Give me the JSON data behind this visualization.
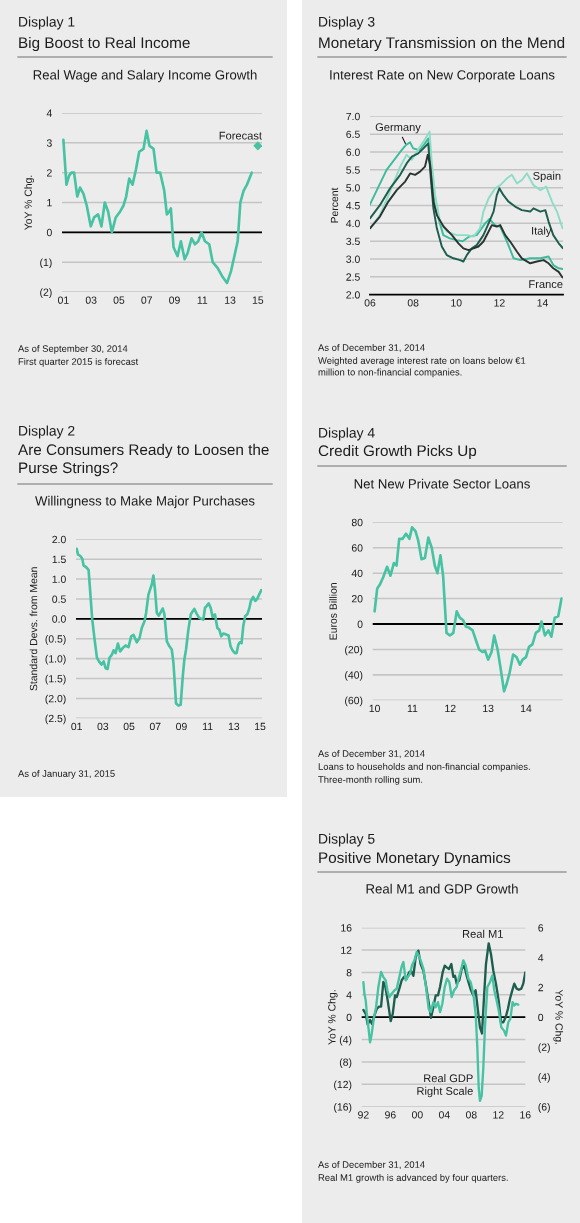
{
  "chart_data": [
    {
      "type": "line",
      "title": "Big Boost to Real Income",
      "subtitle": "Real Wage and Salary Income Growth",
      "ylabel": "YoY % Chg.",
      "annotations": [
        "Display 1",
        "As of September 30, 2014",
        "First quarter 2015 is forecast"
      ],
      "xlim": [
        2000.9,
        2015.3
      ],
      "xticks": [
        {
          "value": 2001,
          "label": "01"
        },
        {
          "value": 2003,
          "label": "03"
        },
        {
          "value": 2005,
          "label": "05"
        },
        {
          "value": 2007,
          "label": "07"
        },
        {
          "value": 2009,
          "label": "09"
        },
        {
          "value": 2011,
          "label": "11"
        },
        {
          "value": 2013,
          "label": "13"
        },
        {
          "value": 2015,
          "label": "15"
        }
      ],
      "ylim": [
        -2,
        4
      ],
      "yticks": [
        {
          "value": -2,
          "label": "(2)"
        },
        {
          "value": -1,
          "label": "(1)"
        },
        0,
        1,
        2,
        3,
        4
      ],
      "grid": "y",
      "ref_lines": [
        {
          "axis": "y",
          "value": 0,
          "color": "#000000"
        }
      ],
      "series": [
        {
          "color": "#47c2a2",
          "x": [
            2001.0,
            2001.22,
            2001.41,
            2001.58,
            2001.77,
            2002.0,
            2002.2,
            2002.44,
            2002.68,
            2002.97,
            2003.21,
            2003.5,
            2003.74,
            2003.98,
            2004.22,
            2004.49,
            2004.77,
            2005.09,
            2005.33,
            2005.52,
            2005.74,
            2005.98,
            2006.22,
            2006.46,
            2006.77,
            2006.99,
            2007.2,
            2007.49,
            2007.71,
            2007.97,
            2008.26,
            2008.45,
            2008.62,
            2008.74,
            2008.93,
            2009.22,
            2009.46,
            2009.73,
            2009.94,
            2010.23,
            2010.47,
            2010.71,
            2010.95,
            2011.19,
            2011.5,
            2011.75,
            2012.11,
            2012.47,
            2012.78,
            2013.07,
            2013.31,
            2013.55,
            2013.74,
            2013.98,
            2014.22,
            2014.56
          ],
          "values": [
            3.1,
            1.6,
            1.9,
            2.0,
            2.0,
            1.2,
            1.5,
            1.3,
            0.9,
            0.2,
            0.5,
            0.6,
            0.2,
            1.0,
            0.7,
            0.0,
            0.5,
            0.7,
            0.9,
            1.2,
            1.8,
            1.6,
            2.1,
            2.7,
            2.8,
            3.4,
            2.9,
            2.8,
            2.0,
            2.0,
            1.4,
            0.6,
            0.7,
            0.8,
            -0.5,
            -0.8,
            -0.3,
            -0.9,
            -0.7,
            -0.2,
            -0.4,
            -0.3,
            0.0,
            -0.3,
            -0.4,
            -1.0,
            -1.2,
            -1.5,
            -1.7,
            -1.3,
            -0.8,
            -0.3,
            1.0,
            1.4,
            1.6,
            2.0
          ]
        },
        {
          "name": "Forecast",
          "type": "scatter",
          "marker": "diamond",
          "color": "#47c2a2",
          "x": [
            2015.0
          ],
          "values": [
            2.9
          ]
        }
      ]
    },
    {
      "type": "line",
      "title": "Monetary Transmission on the Mend",
      "subtitle": "Interest Rate on New Corporate Loans",
      "ylabel": "Percent",
      "annotations": [
        "Display 3",
        "As of December 31, 2014",
        "Weighted average interest rate on loans below €1\nmillion to non-financial companies."
      ],
      "xlim": [
        2006.0,
        2014.95
      ],
      "xticks": [
        {
          "value": 2006,
          "label": "06"
        },
        {
          "value": 2008,
          "label": "08"
        },
        {
          "value": 2010,
          "label": "10"
        },
        {
          "value": 2012,
          "label": "12"
        },
        {
          "value": 2014,
          "label": "14"
        }
      ],
      "ylim": [
        2.0,
        7.0
      ],
      "yticks": [
        {
          "value": 2,
          "label": "2.0"
        },
        2.5,
        {
          "value": 3,
          "label": "3.0"
        },
        3.5,
        {
          "value": 4,
          "label": "4.0"
        },
        4.5,
        {
          "value": 5,
          "label": "5.0"
        },
        5.5,
        {
          "value": 6,
          "label": "6.0"
        },
        6.5,
        {
          "value": 7,
          "label": "7.0"
        }
      ],
      "grid": "y",
      "series": [
        {
          "name": "Germany",
          "color": "#3dbb9b",
          "x": [
            2006.0,
            2006.77,
            2007.4,
            2007.67,
            2007.86,
            2008.0,
            2008.3,
            2008.5,
            2008.7,
            2009.0,
            2009.4,
            2009.7,
            2010.0,
            2010.3,
            2010.6,
            2010.95,
            2011.34,
            2011.54,
            2011.8,
            2012.04,
            2012.35,
            2012.66,
            2012.97,
            2013.43,
            2013.9,
            2014.28,
            2014.5,
            2014.75,
            2014.95
          ],
          "values": [
            4.53,
            5.5,
            6.0,
            6.2,
            6.27,
            6.1,
            6.05,
            6.2,
            6.38,
            4.5,
            3.67,
            3.58,
            3.53,
            3.5,
            3.63,
            3.67,
            4.0,
            4.12,
            3.95,
            3.9,
            3.49,
            3.02,
            2.97,
            3.02,
            3.02,
            3.07,
            2.83,
            2.74,
            2.72
          ]
        },
        {
          "name": "Spain",
          "color": "#8fdcc6",
          "x": [
            2006.0,
            2006.46,
            2006.93,
            2007.4,
            2007.7,
            2007.94,
            2008.17,
            2008.48,
            2008.76,
            2008.86,
            2009.02,
            2009.25,
            2009.56,
            2010.02,
            2010.49,
            2010.8,
            2011.1,
            2011.26,
            2011.5,
            2011.8,
            2012.04,
            2012.35,
            2012.58,
            2012.81,
            2013.04,
            2013.28,
            2013.58,
            2013.9,
            2014.17,
            2014.44,
            2014.67,
            2014.93
          ],
          "values": [
            3.86,
            4.23,
            4.89,
            5.59,
            5.92,
            5.78,
            6.01,
            6.29,
            6.57,
            5.73,
            4.79,
            4.05,
            3.77,
            3.67,
            3.67,
            3.63,
            3.86,
            4.33,
            4.7,
            4.98,
            5.07,
            5.26,
            5.36,
            5.12,
            5.21,
            5.4,
            5.07,
            4.93,
            5.03,
            4.61,
            4.33,
            3.86
          ]
        },
        {
          "name": "Italy",
          "color": "#1e5e4e",
          "x": [
            2006.0,
            2006.46,
            2006.93,
            2007.4,
            2007.7,
            2007.94,
            2008.24,
            2008.48,
            2008.7,
            2008.82,
            2008.94,
            2009.1,
            2009.33,
            2009.56,
            2009.87,
            2010.18,
            2010.33,
            2010.49,
            2010.72,
            2010.95,
            2011.26,
            2011.5,
            2011.73,
            2011.88,
            2012.0,
            2012.19,
            2012.42,
            2012.73,
            2013.04,
            2013.43,
            2013.58,
            2013.9,
            2014.13,
            2014.28,
            2014.5,
            2014.75,
            2014.95
          ],
          "values": [
            4.14,
            4.51,
            4.98,
            5.36,
            5.68,
            5.87,
            5.96,
            6.1,
            6.24,
            5.26,
            4.42,
            3.86,
            3.35,
            3.11,
            3.02,
            2.97,
            2.93,
            3.11,
            3.3,
            3.39,
            3.67,
            4.0,
            4.33,
            4.79,
            4.98,
            4.79,
            4.61,
            4.47,
            4.37,
            4.33,
            4.42,
            4.33,
            4.37,
            4.05,
            3.67,
            3.44,
            3.3
          ]
        },
        {
          "name": "France",
          "color": "#2a3532",
          "x": [
            2006.0,
            2006.46,
            2006.85,
            2007.24,
            2007.63,
            2007.86,
            2008.09,
            2008.32,
            2008.55,
            2008.68,
            2008.79,
            2008.94,
            2009.1,
            2009.41,
            2009.8,
            2010.1,
            2010.33,
            2010.57,
            2010.8,
            2011.03,
            2011.26,
            2011.5,
            2011.65,
            2011.88,
            2012.04,
            2012.27,
            2012.5,
            2012.81,
            2013.04,
            2013.43,
            2013.74,
            2014.05,
            2014.28,
            2014.5,
            2014.75,
            2014.93
          ],
          "values": [
            3.86,
            4.19,
            4.61,
            4.93,
            5.17,
            5.4,
            5.36,
            5.45,
            5.59,
            5.92,
            5.64,
            4.61,
            4.23,
            3.91,
            3.67,
            3.44,
            3.3,
            3.25,
            3.3,
            3.35,
            3.49,
            3.77,
            3.95,
            3.91,
            3.95,
            3.67,
            3.49,
            3.21,
            3.02,
            2.88,
            2.93,
            2.97,
            2.88,
            2.74,
            2.64,
            2.48
          ]
        }
      ]
    },
    {
      "type": "line",
      "title": "Are Consumers Ready to Loosen the\nPurse Strings?",
      "subtitle": "Willingness to Make Major Purchases",
      "ylabel": "Standard Devs. from Mean",
      "annotations": [
        "Display 2",
        "As of January 31, 2015"
      ],
      "xlim": [
        2000.95,
        2015.15
      ],
      "xticks": [
        {
          "value": 2001,
          "label": "01"
        },
        {
          "value": 2003,
          "label": "03"
        },
        {
          "value": 2005,
          "label": "05"
        },
        {
          "value": 2007,
          "label": "07"
        },
        {
          "value": 2009,
          "label": "09"
        },
        {
          "value": 2011,
          "label": "11"
        },
        {
          "value": 2013,
          "label": "13"
        },
        {
          "value": 2015,
          "label": "15"
        }
      ],
      "ylim": [
        -2.5,
        2.0
      ],
      "yticks": [
        {
          "value": -2.5,
          "label": "(2.5)"
        },
        {
          "value": -2,
          "label": "(2.0)"
        },
        {
          "value": -1.5,
          "label": "(1.5)"
        },
        {
          "value": -1,
          "label": "(1.0)"
        },
        {
          "value": -0.5,
          "label": "(0.5)"
        },
        {
          "value": 0,
          "label": "0.0"
        },
        0.5,
        {
          "value": 1,
          "label": "1.0"
        },
        1.5,
        {
          "value": 2,
          "label": "2.0"
        }
      ],
      "grid": "y",
      "ref_lines": [
        {
          "axis": "y",
          "value": 0,
          "color": "#000000"
        }
      ],
      "series": [
        {
          "color": "#47c2a2",
          "x": [
            2001.0,
            2001.1,
            2001.28,
            2001.43,
            2001.53,
            2001.69,
            2001.91,
            2002.04,
            2002.19,
            2002.37,
            2002.55,
            2002.75,
            2002.9,
            2003.06,
            2003.21,
            2003.36,
            2003.51,
            2003.69,
            2003.82,
            2003.97,
            2004.15,
            2004.32,
            2004.53,
            2004.73,
            2004.96,
            2005.16,
            2005.34,
            2005.59,
            2005.8,
            2005.97,
            2006.18,
            2006.3,
            2006.48,
            2006.61,
            2006.74,
            2006.86,
            2006.99,
            2007.12,
            2007.27,
            2007.45,
            2007.57,
            2007.7,
            2007.88,
            2008.08,
            2008.26,
            2008.39,
            2008.59,
            2008.77,
            2008.94,
            2009.1,
            2009.22,
            2009.35,
            2009.53,
            2009.71,
            2009.86,
            2009.98,
            2010.16,
            2010.34,
            2010.54,
            2010.67,
            2010.8,
            2010.92,
            2011.08,
            2011.23,
            2011.38,
            2011.56,
            2011.74,
            2011.89,
            2012.04,
            2012.19,
            2012.4,
            2012.6,
            2012.75,
            2012.9,
            2013.08,
            2013.21,
            2013.34,
            2013.46,
            2013.59,
            2013.72,
            2013.87,
            2014.02,
            2014.17,
            2014.3,
            2014.48,
            2014.63,
            2014.78,
            2014.93,
            2015.09
          ],
          "values": [
            1.76,
            1.62,
            1.58,
            1.51,
            1.34,
            1.31,
            1.23,
            0.66,
            -0.02,
            -0.52,
            -0.98,
            -1.09,
            -1.15,
            -1.07,
            -1.24,
            -1.26,
            -0.98,
            -0.9,
            -0.79,
            -0.86,
            -0.62,
            -0.82,
            -0.73,
            -0.67,
            -0.71,
            -0.44,
            -0.4,
            -0.59,
            -0.48,
            -0.23,
            -0.06,
            0.15,
            0.61,
            0.74,
            0.87,
            1.09,
            0.7,
            0.15,
            0.08,
            0.19,
            0.26,
            0.11,
            -0.56,
            -0.69,
            -0.77,
            -1.11,
            -2.13,
            -2.18,
            -2.16,
            -1.45,
            -1.03,
            -0.77,
            -0.27,
            0.11,
            0.19,
            0.25,
            0.13,
            0.03,
            0.0,
            -0.02,
            0.28,
            0.32,
            0.39,
            0.28,
            0.05,
            0.11,
            -0.23,
            -0.27,
            -0.44,
            -0.37,
            -0.39,
            -0.42,
            -0.69,
            -0.79,
            -0.86,
            -0.86,
            -0.65,
            -0.59,
            -0.61,
            -0.18,
            0.07,
            0.11,
            0.25,
            0.45,
            0.55,
            0.45,
            0.5,
            0.61,
            0.72
          ]
        }
      ]
    },
    {
      "type": "line",
      "title": "Credit Growth Picks Up",
      "subtitle": "Net New Private Sector Loans",
      "ylabel": "Euros Billion",
      "annotations": [
        "Display 4",
        "As of December 31, 2014",
        "Loans to households and non-financial companies.",
        "Three-month rolling sum."
      ],
      "xlim": [
        2009.95,
        2014.97
      ],
      "xticks": [
        {
          "value": 2010,
          "label": "10"
        },
        {
          "value": 2011,
          "label": "11"
        },
        {
          "value": 2012,
          "label": "12"
        },
        {
          "value": 2013,
          "label": "13"
        },
        {
          "value": 2014,
          "label": "14"
        }
      ],
      "ylim": [
        -60,
        80
      ],
      "yticks": [
        {
          "value": -60,
          "label": "(60)"
        },
        {
          "value": -40,
          "label": "(40)"
        },
        {
          "value": -20,
          "label": "(20)"
        },
        0,
        20,
        40,
        60,
        80
      ],
      "grid": "y",
      "ref_lines": [
        {
          "axis": "y",
          "value": 0,
          "color": "#000000"
        }
      ],
      "series": [
        {
          "color": "#47c2a2",
          "x": [
            2010.0,
            2010.07,
            2010.14,
            2010.23,
            2010.33,
            2010.42,
            2010.51,
            2010.58,
            2010.65,
            2010.74,
            2010.83,
            2010.92,
            2010.99,
            2011.08,
            2011.15,
            2011.24,
            2011.33,
            2011.42,
            2011.51,
            2011.59,
            2011.66,
            2011.74,
            2011.81,
            2011.9,
            2011.99,
            2012.08,
            2012.17,
            2012.25,
            2012.34,
            2012.41,
            2012.5,
            2012.59,
            2012.68,
            2012.76,
            2012.85,
            2012.92,
            2013.0,
            2013.09,
            2013.16,
            2013.25,
            2013.33,
            2013.42,
            2013.49,
            2013.57,
            2013.66,
            2013.75,
            2013.84,
            2013.91,
            2014.0,
            2014.08,
            2014.17,
            2014.26,
            2014.35,
            2014.41,
            2014.5,
            2014.59,
            2014.67,
            2014.76,
            2014.85,
            2014.94
          ],
          "values": [
            10,
            28,
            31,
            37,
            45,
            38,
            48,
            46,
            67,
            67,
            71,
            67,
            76,
            73,
            66,
            51,
            52,
            68,
            60,
            46,
            40,
            54,
            38,
            -7,
            -9,
            -7,
            10,
            5,
            3,
            -2,
            -3,
            -5,
            -13,
            -20,
            -22,
            -21,
            -28,
            -22,
            -9,
            -20,
            -35,
            -53,
            -47,
            -38,
            -24,
            -26,
            -32,
            -28,
            -26,
            -18,
            -16,
            -7,
            -5,
            2,
            -9,
            -5,
            -10,
            5,
            6,
            20
          ]
        }
      ]
    },
    {
      "type": "line",
      "title": "Positive Monetary Dynamics",
      "subtitle": "Real M1 and GDP Growth",
      "ylabel": "YoY % Chg.",
      "y2label": "YoY % Chg.",
      "annotations": [
        "Display 5",
        "As of December 31, 2014",
        "Real M1 growth is advanced by four quarters."
      ],
      "xlim": [
        1991.75,
        2016.0
      ],
      "xticks": [
        {
          "value": 1992,
          "label": "92"
        },
        {
          "value": 1996,
          "label": "96"
        },
        {
          "value": 2000,
          "label": "00"
        },
        {
          "value": 2004,
          "label": "04"
        },
        {
          "value": 2008,
          "label": "08"
        },
        {
          "value": 2012,
          "label": "12"
        },
        {
          "value": 2016,
          "label": "16"
        }
      ],
      "ylim": [
        -16,
        16
      ],
      "yticks": [
        {
          "value": -16,
          "label": "(16)"
        },
        {
          "value": -12,
          "label": "(12)"
        },
        {
          "value": -8,
          "label": "(8)"
        },
        {
          "value": -4,
          "label": "(4)"
        },
        0,
        4,
        8,
        12,
        16
      ],
      "y2lim": [
        -6,
        6
      ],
      "y2ticks": [
        {
          "value": -6,
          "label": "(6)"
        },
        {
          "value": -4,
          "label": "(4)"
        },
        {
          "value": -2,
          "label": "(2)"
        },
        0,
        2,
        4,
        6
      ],
      "grid": "y",
      "ref_lines": [
        {
          "axis": "y",
          "value": 0,
          "color": "#000000"
        }
      ],
      "series": [
        {
          "name": "Real M1",
          "color": "#1e5e4e",
          "x": [
            1992.0,
            1992.35,
            1992.64,
            1992.99,
            1993.28,
            1993.63,
            1993.98,
            1994.32,
            1994.62,
            1994.96,
            1995.26,
            1995.6,
            1996.05,
            1996.35,
            1996.69,
            1996.94,
            1997.33,
            1997.68,
            1998.02,
            1998.42,
            1998.77,
            1999.06,
            1999.41,
            1999.75,
            2000.15,
            2000.49,
            2000.89,
            2001.23,
            2001.63,
            2002.02,
            2002.37,
            2002.72,
            2003.06,
            2003.36,
            2003.75,
            2004.05,
            2004.35,
            2004.69,
            2005.04,
            2005.33,
            2005.58,
            2005.83,
            2006.22,
            2006.57,
            2006.96,
            2007.31,
            2007.65,
            2007.95,
            2008.3,
            2008.64,
            2009.04,
            2009.28,
            2009.58,
            2009.88,
            2010.17,
            2010.57,
            2010.91,
            2011.26,
            2011.65,
            2012.05,
            2012.4,
            2012.74,
            2013.09,
            2013.43,
            2013.73,
            2014.07,
            2014.37,
            2014.72,
            2015.06,
            2015.41,
            2015.7,
            2016.0
          ],
          "values": [
            1.3,
            0.6,
            -1.3,
            -0.5,
            -1.2,
            0.3,
            1.5,
            1.9,
            1.9,
            6.3,
            5.4,
            3.0,
            -0.7,
            0.6,
            3.9,
            3.6,
            5.1,
            6.6,
            7.2,
            6.9,
            8.0,
            8.3,
            7.4,
            10.7,
            11.9,
            9.5,
            8.3,
            6.0,
            3.0,
            -0.1,
            1.8,
            3.9,
            3.9,
            5.4,
            8.0,
            9.2,
            8.9,
            8.6,
            9.5,
            7.2,
            7.4,
            6.0,
            6.6,
            8.6,
            9.2,
            7.4,
            6.0,
            4.8,
            3.9,
            4.8,
            0.6,
            -1.8,
            -2.9,
            3.6,
            9.5,
            13.2,
            11.3,
            8.3,
            6.0,
            3.0,
            -0.9,
            -0.9,
            0.0,
            1.5,
            3.3,
            4.8,
            6.0,
            5.1,
            4.9,
            5.1,
            6.0,
            8.0
          ]
        },
        {
          "name": "Real GDP\nRight Scale",
          "axis": "y2",
          "color": "#47c2a2",
          "x": [
            1992.0,
            1992.15,
            1992.35,
            1992.49,
            1992.74,
            1992.99,
            1993.23,
            1993.58,
            1993.88,
            1994.22,
            1994.62,
            1994.96,
            1995.31,
            1995.56,
            1995.85,
            1996.2,
            1996.59,
            1996.94,
            1997.33,
            1997.68,
            1997.93,
            1998.27,
            1998.57,
            1998.91,
            1999.21,
            1999.56,
            1999.9,
            2000.2,
            2000.49,
            2000.89,
            2001.28,
            2001.68,
            2001.98,
            2002.37,
            2002.72,
            2003.06,
            2003.36,
            2003.7,
            2004.05,
            2004.4,
            2004.74,
            2005.09,
            2005.43,
            2005.83,
            2006.17,
            2006.52,
            2006.81,
            2007.16,
            2007.56,
            2007.9,
            2008.3,
            2008.64,
            2008.89,
            2009.09,
            2009.28,
            2009.53,
            2009.78,
            2010.02,
            2010.37,
            2010.77,
            2011.11,
            2011.41,
            2011.75,
            2012.1,
            2012.44,
            2012.84,
            2013.14,
            2013.48,
            2013.78,
            2014.12,
            2014.37,
            2014.62,
            2014.96
          ],
          "values": [
            2.35,
            1.57,
            1.12,
            0.34,
            -0.67,
            -1.68,
            -1.12,
            0.0,
            0.67,
            2.02,
            3.03,
            2.69,
            2.47,
            1.79,
            1.35,
            1.57,
            1.79,
            1.91,
            2.69,
            3.41,
            3.7,
            2.47,
            2.69,
            2.91,
            3.48,
            3.81,
            4.37,
            4.15,
            3.81,
            3.25,
            2.02,
            0.56,
            0.34,
            1.01,
            0.67,
            1.01,
            0.34,
            0.9,
            2.02,
            2.58,
            2.35,
            1.35,
            1.79,
            2.02,
            2.69,
            3.25,
            3.81,
            3.48,
            2.58,
            2.35,
            1.57,
            0.22,
            -2.02,
            -4.71,
            -5.61,
            -5.27,
            -3.36,
            -0.67,
            2.02,
            2.35,
            2.8,
            1.79,
            1.12,
            0.34,
            -0.67,
            -0.9,
            -1.23,
            -0.34,
            -0.11,
            1.01,
            0.79,
            0.9,
            0.85
          ]
        }
      ]
    }
  ]
}
